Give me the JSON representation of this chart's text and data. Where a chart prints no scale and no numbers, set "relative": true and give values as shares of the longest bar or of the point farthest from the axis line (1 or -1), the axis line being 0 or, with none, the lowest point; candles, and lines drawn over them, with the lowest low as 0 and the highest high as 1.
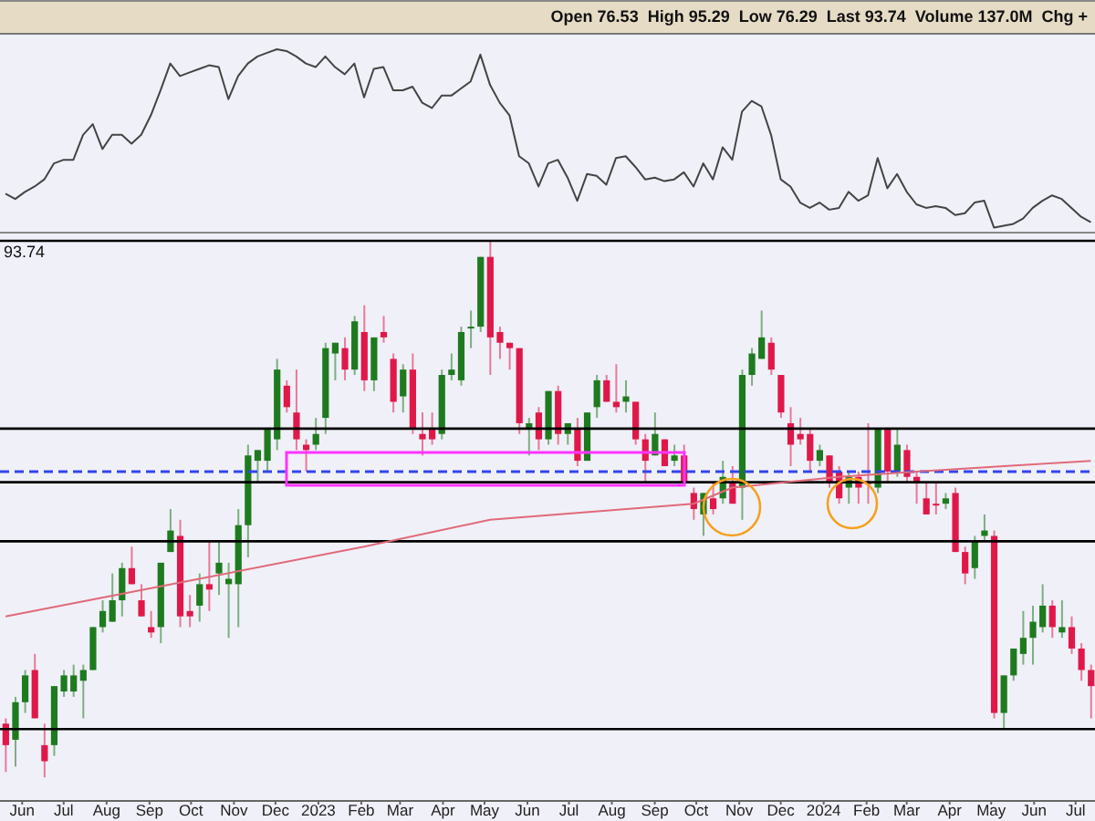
{
  "chart_data": [
    {
      "type": "line",
      "relative": true,
      "tick_labels": false,
      "marker": "none",
      "annotations": [
        "Open 76.53  High 95.29  Low 76.29  Last 93.74  Volume 137.0M  Chg +"
      ],
      "xlim": [
        "2022-05-16",
        "2024-07-15"
      ],
      "x": [
        "2022-05-20",
        "2022-05-27",
        "2022-06-03",
        "2022-06-10",
        "2022-06-17",
        "2022-06-24",
        "2022-07-01",
        "2022-07-08",
        "2022-07-15",
        "2022-07-22",
        "2022-07-29",
        "2022-08-05",
        "2022-08-12",
        "2022-08-19",
        "2022-08-26",
        "2022-09-02",
        "2022-09-09",
        "2022-09-16",
        "2022-09-23",
        "2022-09-30",
        "2022-10-07",
        "2022-10-14",
        "2022-10-21",
        "2022-10-28",
        "2022-11-04",
        "2022-11-11",
        "2022-11-18",
        "2022-11-25",
        "2022-12-02",
        "2022-12-09",
        "2022-12-16",
        "2022-12-23",
        "2022-12-30",
        "2023-01-06",
        "2023-01-13",
        "2023-01-20",
        "2023-01-27",
        "2023-02-03",
        "2023-02-10",
        "2023-02-17",
        "2023-02-24",
        "2023-03-03",
        "2023-03-10",
        "2023-03-17",
        "2023-03-24",
        "2023-03-31",
        "2023-04-07",
        "2023-04-14",
        "2023-04-21",
        "2023-04-28",
        "2023-05-05",
        "2023-05-12",
        "2023-05-19",
        "2023-05-26",
        "2023-06-02",
        "2023-06-09",
        "2023-06-16",
        "2023-06-23",
        "2023-06-30",
        "2023-07-07",
        "2023-07-14",
        "2023-07-21",
        "2023-07-28",
        "2023-08-04",
        "2023-08-11",
        "2023-08-18",
        "2023-08-25",
        "2023-09-01",
        "2023-09-08",
        "2023-09-15",
        "2023-09-22",
        "2023-09-29",
        "2023-10-06",
        "2023-10-13",
        "2023-10-20",
        "2023-10-27",
        "2023-11-03",
        "2023-11-10",
        "2023-11-17",
        "2023-11-24",
        "2023-12-01",
        "2023-12-08",
        "2023-12-15",
        "2023-12-22",
        "2023-12-29",
        "2024-01-05",
        "2024-01-12",
        "2024-01-19",
        "2024-01-26",
        "2024-02-02",
        "2024-02-09",
        "2024-02-16",
        "2024-02-23",
        "2024-03-01",
        "2024-03-08",
        "2024-03-15",
        "2024-03-22",
        "2024-03-29",
        "2024-04-05",
        "2024-04-12",
        "2024-04-19",
        "2024-04-26",
        "2024-05-03",
        "2024-05-10",
        "2024-05-17",
        "2024-05-24",
        "2024-05-31",
        "2024-06-07",
        "2024-06-14",
        "2024-06-21",
        "2024-06-28",
        "2024-07-05",
        "2024-07-12"
      ],
      "series": [
        {
          "color": "#444444",
          "values": [
            0.19,
            0.16,
            0.2,
            0.23,
            0.27,
            0.36,
            0.38,
            0.38,
            0.52,
            0.58,
            0.44,
            0.52,
            0.52,
            0.47,
            0.52,
            0.63,
            0.77,
            0.92,
            0.85,
            0.87,
            0.89,
            0.91,
            0.9,
            0.72,
            0.85,
            0.92,
            0.96,
            0.98,
            1,
            0.99,
            0.96,
            0.92,
            0.9,
            0.96,
            0.9,
            0.86,
            0.92,
            0.73,
            0.89,
            0.9,
            0.77,
            0.77,
            0.79,
            0.7,
            0.67,
            0.74,
            0.74,
            0.78,
            0.82,
            0.97,
            0.8,
            0.7,
            0.63,
            0.4,
            0.36,
            0.23,
            0.36,
            0.38,
            0.28,
            0.15,
            0.3,
            0.29,
            0.24,
            0.39,
            0.4,
            0.34,
            0.27,
            0.28,
            0.26,
            0.27,
            0.31,
            0.23,
            0.36,
            0.27,
            0.45,
            0.38,
            0.65,
            0.71,
            0.68,
            0.52,
            0.27,
            0.23,
            0.14,
            0.11,
            0.14,
            0.1,
            0.11,
            0.2,
            0.15,
            0.18,
            0.39,
            0.22,
            0.3,
            0.2,
            0.13,
            0.11,
            0.12,
            0.11,
            0.07,
            0.08,
            0.14,
            0.15,
            0,
            0.01,
            0.02,
            0.05,
            0.11,
            0.15,
            0.18,
            0.16,
            0.11,
            0.06,
            0.03
          ]
        }
      ]
    },
    {
      "type": "candlestick",
      "relative": true,
      "annotations": [
        "93.74"
      ],
      "xlim": [
        "2022-05-16",
        "2024-07-15"
      ],
      "xticks": [
        {
          "value": "2022-06-01",
          "label": "Jun"
        },
        {
          "value": "2022-07-01",
          "label": "Jul"
        },
        {
          "value": "2022-08-01",
          "label": "Aug"
        },
        {
          "value": "2022-09-01",
          "label": "Sep"
        },
        {
          "value": "2022-10-01",
          "label": "Oct"
        },
        {
          "value": "2022-11-01",
          "label": "Nov"
        },
        {
          "value": "2022-12-01",
          "label": "Dec"
        },
        {
          "value": "2023-01-01",
          "label": "2023"
        },
        {
          "value": "2023-02-01",
          "label": "Feb"
        },
        {
          "value": "2023-03-01",
          "label": "Mar"
        },
        {
          "value": "2023-04-01",
          "label": "Apr"
        },
        {
          "value": "2023-05-01",
          "label": "May"
        },
        {
          "value": "2023-06-01",
          "label": "Jun"
        },
        {
          "value": "2023-07-01",
          "label": "Jul"
        },
        {
          "value": "2023-08-01",
          "label": "Aug"
        },
        {
          "value": "2023-09-01",
          "label": "Sep"
        },
        {
          "value": "2023-10-01",
          "label": "Oct"
        },
        {
          "value": "2023-11-01",
          "label": "Nov"
        },
        {
          "value": "2023-12-01",
          "label": "Dec"
        },
        {
          "value": "2024-01-01",
          "label": "2024"
        },
        {
          "value": "2024-02-01",
          "label": "Feb"
        },
        {
          "value": "2024-03-01",
          "label": "Mar"
        },
        {
          "value": "2024-04-01",
          "label": "Apr"
        },
        {
          "value": "2024-05-01",
          "label": "May"
        },
        {
          "value": "2024-06-01",
          "label": "Jun"
        },
        {
          "value": "2024-07-01",
          "label": "Jul"
        }
      ],
      "x": [
        "2022-05-20",
        "2022-05-27",
        "2022-06-03",
        "2022-06-10",
        "2022-06-17",
        "2022-06-24",
        "2022-07-01",
        "2022-07-08",
        "2022-07-15",
        "2022-07-22",
        "2022-07-29",
        "2022-08-05",
        "2022-08-12",
        "2022-08-19",
        "2022-08-26",
        "2022-09-02",
        "2022-09-09",
        "2022-09-16",
        "2022-09-23",
        "2022-09-30",
        "2022-10-07",
        "2022-10-14",
        "2022-10-21",
        "2022-10-28",
        "2022-11-04",
        "2022-11-11",
        "2022-11-18",
        "2022-11-25",
        "2022-12-02",
        "2022-12-09",
        "2022-12-16",
        "2022-12-23",
        "2022-12-30",
        "2023-01-06",
        "2023-01-13",
        "2023-01-20",
        "2023-01-27",
        "2023-02-03",
        "2023-02-10",
        "2023-02-17",
        "2023-02-24",
        "2023-03-03",
        "2023-03-10",
        "2023-03-17",
        "2023-03-24",
        "2023-03-31",
        "2023-04-07",
        "2023-04-14",
        "2023-04-21",
        "2023-04-28",
        "2023-05-05",
        "2023-05-12",
        "2023-05-19",
        "2023-05-26",
        "2023-06-02",
        "2023-06-09",
        "2023-06-16",
        "2023-06-23",
        "2023-06-30",
        "2023-07-07",
        "2023-07-14",
        "2023-07-21",
        "2023-07-28",
        "2023-08-04",
        "2023-08-11",
        "2023-08-18",
        "2023-08-25",
        "2023-09-01",
        "2023-09-08",
        "2023-09-15",
        "2023-09-22",
        "2023-09-29",
        "2023-10-06",
        "2023-10-13",
        "2023-10-20",
        "2023-10-27",
        "2023-11-03",
        "2023-11-10",
        "2023-11-17",
        "2023-11-24",
        "2023-12-01",
        "2023-12-08",
        "2023-12-15",
        "2023-12-22",
        "2023-12-29",
        "2024-01-05",
        "2024-01-12",
        "2024-01-19",
        "2024-01-26",
        "2024-02-02",
        "2024-02-09",
        "2024-02-16",
        "2024-02-23",
        "2024-03-01",
        "2024-03-08",
        "2024-03-15",
        "2024-03-22",
        "2024-03-29",
        "2024-04-05",
        "2024-04-12",
        "2024-04-19",
        "2024-04-26",
        "2024-05-03",
        "2024-05-10",
        "2024-05-17",
        "2024-05-24",
        "2024-05-31",
        "2024-06-07",
        "2024-06-14",
        "2024-06-21",
        "2024-06-28",
        "2024-07-05",
        "2024-07-12"
      ],
      "ohlc": [
        [
          0.1,
          0.11,
          0.01,
          0.06
        ],
        [
          0.07,
          0.15,
          0.02,
          0.14
        ],
        [
          0.14,
          0.2,
          0.12,
          0.19
        ],
        [
          0.2,
          0.23,
          0.11,
          0.11
        ],
        [
          0.06,
          0.1,
          0,
          0.03
        ],
        [
          0.06,
          0.17,
          0.04,
          0.17
        ],
        [
          0.16,
          0.2,
          0.15,
          0.19
        ],
        [
          0.16,
          0.21,
          0.15,
          0.19
        ],
        [
          0.18,
          0.21,
          0.11,
          0.2
        ],
        [
          0.2,
          0.28,
          0.2,
          0.28
        ],
        [
          0.28,
          0.33,
          0.27,
          0.31
        ],
        [
          0.29,
          0.38,
          0.29,
          0.33
        ],
        [
          0.33,
          0.4,
          0.3,
          0.39
        ],
        [
          0.39,
          0.43,
          0.36,
          0.36
        ],
        [
          0.33,
          0.36,
          0.3,
          0.3
        ],
        [
          0.28,
          0.31,
          0.26,
          0.27
        ],
        [
          0.28,
          0.4,
          0.25,
          0.4
        ],
        [
          0.42,
          0.5,
          0.42,
          0.46
        ],
        [
          0.45,
          0.48,
          0.28,
          0.3
        ],
        [
          0.31,
          0.34,
          0.28,
          0.3
        ],
        [
          0.32,
          0.38,
          0.29,
          0.36
        ],
        [
          0.36,
          0.44,
          0.31,
          0.35
        ],
        [
          0.38,
          0.44,
          0.34,
          0.4
        ],
        [
          0.36,
          0.4,
          0.26,
          0.37
        ],
        [
          0.36,
          0.5,
          0.28,
          0.47
        ],
        [
          0.47,
          0.62,
          0.41,
          0.6
        ],
        [
          0.59,
          0.61,
          0.55,
          0.61
        ],
        [
          0.59,
          0.65,
          0.57,
          0.65
        ],
        [
          0.63,
          0.78,
          0.61,
          0.76
        ],
        [
          0.73,
          0.74,
          0.68,
          0.69
        ],
        [
          0.68,
          0.76,
          0.61,
          0.63
        ],
        [
          0.62,
          0.63,
          0.57,
          0.61
        ],
        [
          0.62,
          0.67,
          0.61,
          0.64
        ],
        [
          0.67,
          0.81,
          0.64,
          0.8
        ],
        [
          0.79,
          0.81,
          0.74,
          0.81
        ],
        [
          0.8,
          0.82,
          0.74,
          0.76
        ],
        [
          0.76,
          0.86,
          0.75,
          0.85
        ],
        [
          0.83,
          0.88,
          0.72,
          0.74
        ],
        [
          0.74,
          0.82,
          0.72,
          0.82
        ],
        [
          0.83,
          0.86,
          0.81,
          0.82
        ],
        [
          0.78,
          0.79,
          0.68,
          0.7
        ],
        [
          0.71,
          0.77,
          0.68,
          0.76
        ],
        [
          0.76,
          0.79,
          0.64,
          0.65
        ],
        [
          0.64,
          0.68,
          0.6,
          0.63
        ],
        [
          0.65,
          0.68,
          0.62,
          0.63
        ],
        [
          0.64,
          0.76,
          0.63,
          0.75
        ],
        [
          0.75,
          0.79,
          0.74,
          0.76
        ],
        [
          0.74,
          0.84,
          0.73,
          0.83
        ],
        [
          0.84,
          0.87,
          0.8,
          0.84
        ],
        [
          0.84,
          0.97,
          0.83,
          0.97
        ],
        [
          0.97,
          1,
          0.75,
          0.82
        ],
        [
          0.83,
          0.84,
          0.78,
          0.81
        ],
        [
          0.81,
          0.81,
          0.76,
          0.8
        ],
        [
          0.8,
          0.8,
          0.64,
          0.66
        ],
        [
          0.65,
          0.67,
          0.6,
          0.66
        ],
        [
          0.68,
          0.69,
          0.61,
          0.63
        ],
        [
          0.63,
          0.72,
          0.62,
          0.72
        ],
        [
          0.72,
          0.73,
          0.62,
          0.64
        ],
        [
          0.64,
          0.66,
          0.62,
          0.66
        ],
        [
          0.65,
          0.67,
          0.58,
          0.59
        ],
        [
          0.59,
          0.68,
          0.59,
          0.68
        ],
        [
          0.69,
          0.75,
          0.67,
          0.74
        ],
        [
          0.74,
          0.75,
          0.7,
          0.7
        ],
        [
          0.7,
          0.77,
          0.68,
          0.69
        ],
        [
          0.7,
          0.74,
          0.68,
          0.71
        ],
        [
          0.7,
          0.7,
          0.62,
          0.63
        ],
        [
          0.63,
          0.64,
          0.55,
          0.59
        ],
        [
          0.6,
          0.68,
          0.6,
          0.64
        ],
        [
          0.63,
          0.63,
          0.58,
          0.58
        ],
        [
          0.59,
          0.62,
          0.58,
          0.6
        ],
        [
          0.6,
          0.62,
          0.55,
          0.55
        ],
        [
          0.53,
          0.54,
          0.48,
          0.5
        ],
        [
          0.49,
          0.53,
          0.45,
          0.53
        ],
        [
          0.52,
          0.55,
          0.49,
          0.5
        ],
        [
          0.52,
          0.59,
          0.51,
          0.56
        ],
        [
          0.55,
          0.58,
          0.51,
          0.51
        ],
        [
          0.54,
          0.76,
          0.48,
          0.75
        ],
        [
          0.75,
          0.8,
          0.73,
          0.79
        ],
        [
          0.78,
          0.87,
          0.78,
          0.82
        ],
        [
          0.81,
          0.82,
          0.75,
          0.76
        ],
        [
          0.75,
          0.75,
          0.67,
          0.68
        ],
        [
          0.66,
          0.69,
          0.58,
          0.62
        ],
        [
          0.64,
          0.67,
          0.62,
          0.63
        ],
        [
          0.64,
          0.65,
          0.57,
          0.59
        ],
        [
          0.59,
          0.62,
          0.58,
          0.61
        ],
        [
          0.6,
          0.6,
          0.54,
          0.55
        ],
        [
          0.57,
          0.58,
          0.51,
          0.52
        ],
        [
          0.54,
          0.57,
          0.51,
          0.56
        ],
        [
          0.56,
          0.57,
          0.51,
          0.54
        ],
        [
          0.55,
          0.66,
          0.51,
          0.55
        ],
        [
          0.54,
          0.65,
          0.53,
          0.65
        ],
        [
          0.65,
          0.65,
          0.55,
          0.57
        ],
        [
          0.57,
          0.65,
          0.56,
          0.62
        ],
        [
          0.61,
          0.62,
          0.55,
          0.56
        ],
        [
          0.56,
          0.57,
          0.51,
          0.55
        ],
        [
          0.52,
          0.55,
          0.49,
          0.49
        ],
        [
          0.51,
          0.55,
          0.49,
          0.51
        ],
        [
          0.51,
          0.53,
          0.5,
          0.52
        ],
        [
          0.53,
          0.54,
          0.42,
          0.42
        ],
        [
          0.42,
          0.43,
          0.36,
          0.38
        ],
        [
          0.39,
          0.45,
          0.37,
          0.44
        ],
        [
          0.45,
          0.49,
          0.44,
          0.46
        ],
        [
          0.45,
          0.46,
          0.11,
          0.12
        ],
        [
          0.12,
          0.19,
          0.09,
          0.19
        ],
        [
          0.19,
          0.24,
          0.18,
          0.24
        ],
        [
          0.23,
          0.31,
          0.21,
          0.26
        ],
        [
          0.26,
          0.32,
          0.21,
          0.29
        ],
        [
          0.28,
          0.36,
          0.27,
          0.32
        ],
        [
          0.32,
          0.33,
          0.26,
          0.28
        ],
        [
          0.27,
          0.33,
          0.26,
          0.28
        ],
        [
          0.28,
          0.3,
          0.23,
          0.24
        ],
        [
          0.24,
          0.25,
          0.18,
          0.2
        ],
        [
          0.2,
          0.21,
          0.11,
          0.17
        ]
      ],
      "colors": [
        "#e0184a",
        "#1e7a1e",
        "#1e7a1e",
        "#e0184a",
        "#e0184a",
        "#1e7a1e",
        "#1e7a1e",
        "#1e7a1e",
        "#1e7a1e",
        "#1e7a1e",
        "#1e7a1e",
        "#1e7a1e",
        "#1e7a1e",
        "#e0184a",
        "#e0184a",
        "#e0184a",
        "#1e7a1e",
        "#1e7a1e",
        "#e0184a",
        "#e0184a",
        "#1e7a1e",
        "#e0184a",
        "#1e7a1e",
        "#1e7a1e",
        "#1e7a1e",
        "#1e7a1e",
        "#1e7a1e",
        "#1e7a1e",
        "#1e7a1e",
        "#e0184a",
        "#e0184a",
        "#e0184a",
        "#1e7a1e",
        "#1e7a1e",
        "#1e7a1e",
        "#e0184a",
        "#1e7a1e",
        "#e0184a",
        "#1e7a1e",
        "#e0184a",
        "#e0184a",
        "#1e7a1e",
        "#e0184a",
        "#e0184a",
        "#e0184a",
        "#1e7a1e",
        "#1e7a1e",
        "#1e7a1e",
        "#1e7a1e",
        "#1e7a1e",
        "#e0184a",
        "#e0184a",
        "#e0184a",
        "#e0184a",
        "#1e7a1e",
        "#e0184a",
        "#1e7a1e",
        "#e0184a",
        "#1e7a1e",
        "#e0184a",
        "#1e7a1e",
        "#1e7a1e",
        "#e0184a",
        "#e0184a",
        "#1e7a1e",
        "#e0184a",
        "#e0184a",
        "#1e7a1e",
        "#e0184a",
        "#1e7a1e",
        "#e0184a",
        "#e0184a",
        "#1e7a1e",
        "#e0184a",
        "#1e7a1e",
        "#e0184a",
        "#1e7a1e",
        "#1e7a1e",
        "#1e7a1e",
        "#e0184a",
        "#e0184a",
        "#e0184a",
        "#e0184a",
        "#e0184a",
        "#1e7a1e",
        "#e0184a",
        "#e0184a",
        "#1e7a1e",
        "#e0184a",
        "#e0184a",
        "#1e7a1e",
        "#e0184a",
        "#1e7a1e",
        "#e0184a",
        "#e0184a",
        "#e0184a",
        "#e0184a",
        "#1e7a1e",
        "#e0184a",
        "#e0184a",
        "#1e7a1e",
        "#1e7a1e",
        "#e0184a",
        "#1e7a1e",
        "#1e7a1e",
        "#1e7a1e",
        "#1e7a1e",
        "#1e7a1e",
        "#e0184a",
        "#1e7a1e",
        "#e0184a",
        "#e0184a",
        "#e0184a"
      ],
      "series": [
        {
          "type": "line",
          "color": "#e06a7a",
          "x": [
            "2022-05-20",
            "2022-10-07",
            "2023-02-03",
            "2023-05-05",
            "2023-09-29",
            "2023-10-27",
            "2024-01-12",
            "2024-03-08",
            "2024-07-12"
          ],
          "values": [
            0.3,
            0.37,
            0.43,
            0.48,
            0.51,
            0.54,
            0.56,
            0.57,
            0.59
          ]
        }
      ],
      "ref_lines": [
        {
          "axis": "y",
          "value": 1,
          "color": "#000000"
        },
        {
          "axis": "y",
          "value": 0.65,
          "color": "#000000"
        },
        {
          "axis": "y",
          "value": 0.55,
          "color": "#000000"
        },
        {
          "axis": "y",
          "value": 0.44,
          "color": "#000000"
        },
        {
          "axis": "y",
          "value": 0.09,
          "color": "#000000"
        },
        {
          "axis": "y",
          "value": 0.57,
          "color": "#3344ee",
          "line_style": "dashed"
        }
      ]
    }
  ]
}
